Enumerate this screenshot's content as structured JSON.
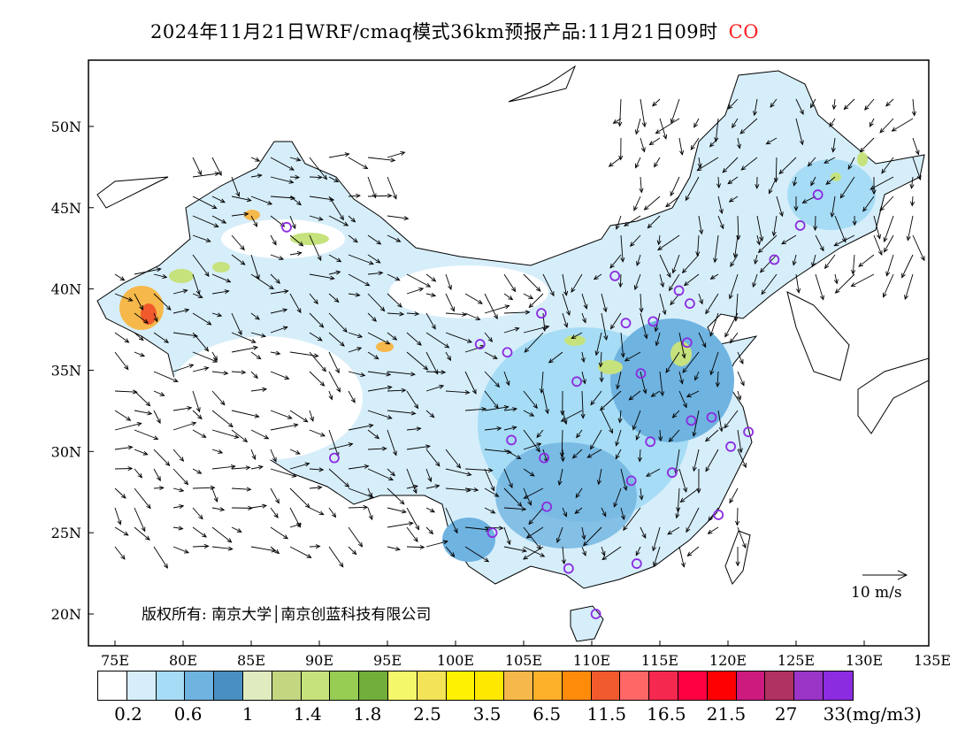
{
  "title": {
    "main": "2024年11月21日WRF/cmaq模式36km预报产品:11月21日09时",
    "species": "CO",
    "species_color": "#ff2020"
  },
  "axes": {
    "lon_labels": [
      "75E",
      "80E",
      "85E",
      "90E",
      "95E",
      "100E",
      "105E",
      "110E",
      "115E",
      "120E",
      "125E",
      "130E",
      "135E"
    ],
    "lat_labels": [
      "20N",
      "25N",
      "30N",
      "35N",
      "40N",
      "45N",
      "50N"
    ]
  },
  "copyright": "版权所有: 南京大学│南京创蓝科技有限公司",
  "vector_legend": "10 m/s",
  "colorbar": {
    "colors": [
      "#ffffff",
      "#d6eefa",
      "#a6dcf5",
      "#6fb3e0",
      "#4a8fc2",
      "#e0ebc0",
      "#c3d780",
      "#c6e27d",
      "#96cd52",
      "#72ae3a",
      "#f5f76b",
      "#f2e357",
      "#fff200",
      "#ffe800",
      "#f6b84a",
      "#fdb12a",
      "#ff8b0a",
      "#f05a2c",
      "#ff6666",
      "#f5294f",
      "#ff0043",
      "#ff0000",
      "#cc1a7f",
      "#b03261",
      "#9a35c8",
      "#8b2ce0"
    ],
    "labels": [
      "0.2",
      "0.6",
      "1",
      "1.4",
      "1.8",
      "2.5",
      "3.5",
      "6.5",
      "11.5",
      "16.5",
      "21.5",
      "27",
      "33(mg/m3)"
    ]
  },
  "stations": [
    [
      87.6,
      43.8
    ],
    [
      126.6,
      45.8
    ],
    [
      125.3,
      43.9
    ],
    [
      123.4,
      41.8
    ],
    [
      111.7,
      40.8
    ],
    [
      116.4,
      39.9
    ],
    [
      117.2,
      39.1
    ],
    [
      114.5,
      38.0
    ],
    [
      112.5,
      37.9
    ],
    [
      106.3,
      38.5
    ],
    [
      101.8,
      36.6
    ],
    [
      103.8,
      36.1
    ],
    [
      117.0,
      36.7
    ],
    [
      113.6,
      34.8
    ],
    [
      108.9,
      34.3
    ],
    [
      118.8,
      32.1
    ],
    [
      117.3,
      31.9
    ],
    [
      121.5,
      31.2
    ],
    [
      120.2,
      30.3
    ],
    [
      114.3,
      30.6
    ],
    [
      104.1,
      30.7
    ],
    [
      106.5,
      29.6
    ],
    [
      112.9,
      28.2
    ],
    [
      115.9,
      28.7
    ],
    [
      119.3,
      26.1
    ],
    [
      106.7,
      26.6
    ],
    [
      102.7,
      25.0
    ],
    [
      108.3,
      22.8
    ],
    [
      113.3,
      23.1
    ],
    [
      110.3,
      20.0
    ],
    [
      91.1,
      29.6
    ]
  ]
}
